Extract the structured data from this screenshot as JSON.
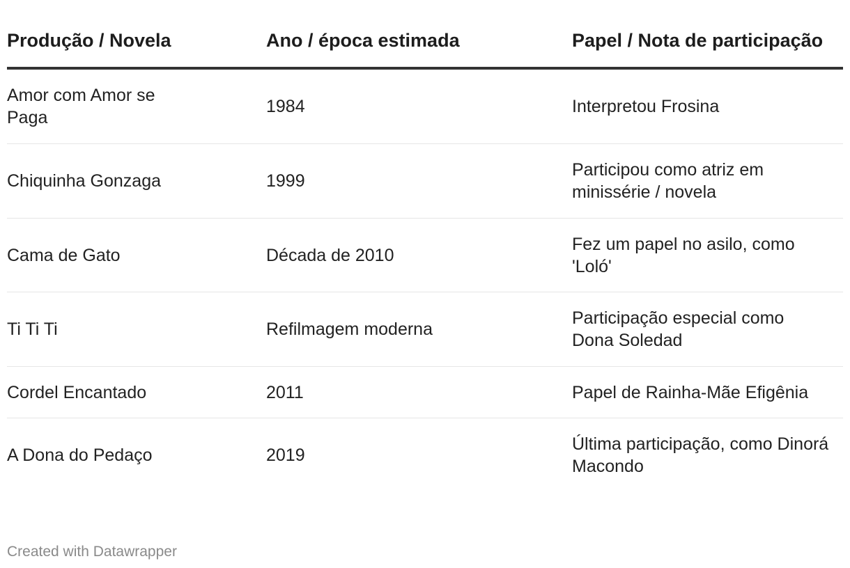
{
  "table": {
    "headers": [
      "Produção / Novela",
      "Ano / época estimada",
      "Papel / Nota de participação"
    ],
    "rows": [
      [
        "Amor com Amor se Paga",
        "1984",
        "Interpretou Frosina"
      ],
      [
        "Chiquinha Gonzaga",
        "1999",
        "Participou como atriz em minissérie / novela"
      ],
      [
        "Cama de Gato",
        "Década de 2010",
        "Fez um papel no asilo, como 'Loló'"
      ],
      [
        "Ti Ti Ti",
        "Refilmagem moderna",
        "Participação especial como Dona Soledad"
      ],
      [
        "Cordel Encantado",
        "2011",
        "Papel de Rainha-Mãe Efigênia"
      ],
      [
        "A Dona do Pedaço",
        "2019",
        "Última participação, como Dinorá Macondo"
      ]
    ]
  },
  "footer": {
    "credit": "Created with Datawrapper"
  }
}
